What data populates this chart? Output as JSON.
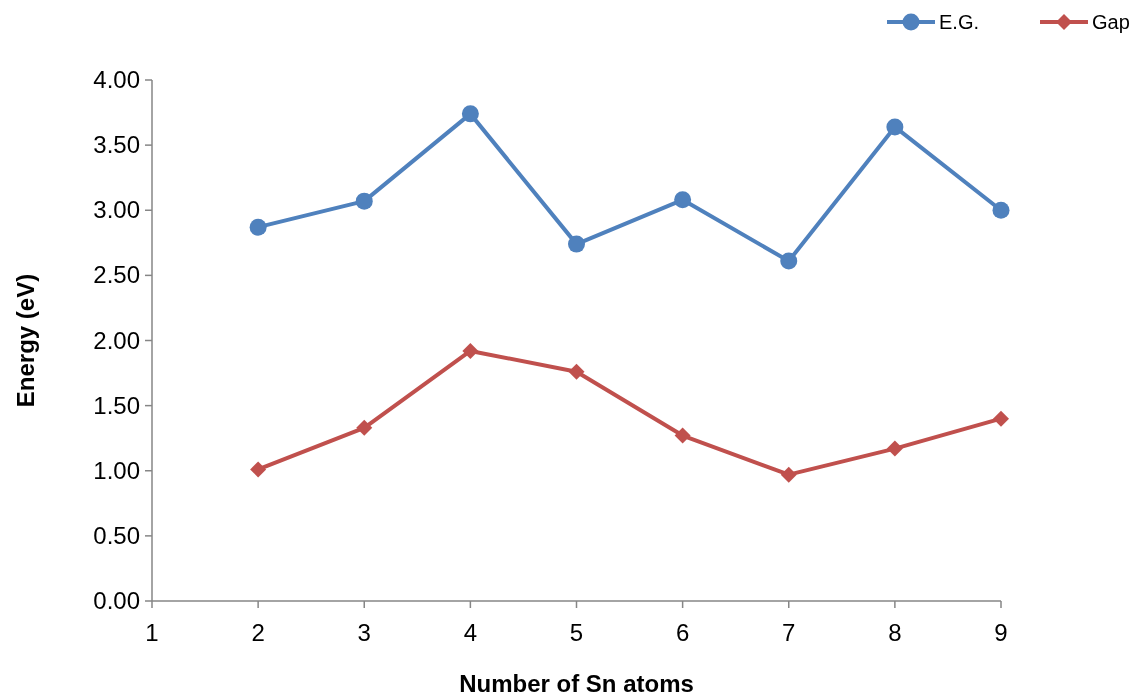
{
  "chart_data": {
    "type": "line",
    "xlabel": "Number of Sn atoms",
    "ylabel": "Energy (eV)",
    "x": [
      2,
      3,
      4,
      5,
      6,
      7,
      8,
      9
    ],
    "xlim": [
      1,
      9
    ],
    "xticks": [
      1,
      2,
      3,
      4,
      5,
      6,
      7,
      8,
      9
    ],
    "ylim": [
      0,
      4
    ],
    "yticks": [
      {
        "value": 0,
        "label": "0.00"
      },
      {
        "value": 0.5,
        "label": "0.50"
      },
      {
        "value": 1,
        "label": "1.00"
      },
      {
        "value": 1.5,
        "label": "1.50"
      },
      {
        "value": 2,
        "label": "2.00"
      },
      {
        "value": 2.5,
        "label": "2.50"
      },
      {
        "value": 3,
        "label": "3.00"
      },
      {
        "value": 3.5,
        "label": "3.50"
      },
      {
        "value": 4,
        "label": "4.00"
      }
    ],
    "grid": false,
    "legend": "top right",
    "line_style": "solid",
    "series": [
      {
        "name": "E.G.",
        "color": "#4f81bd",
        "marker": "circle",
        "values": [
          2.87,
          3.07,
          3.74,
          2.74,
          3.08,
          2.61,
          3.64,
          3.0
        ]
      },
      {
        "name": "Gap",
        "color": "#c0504d",
        "marker": "diamond",
        "values": [
          1.01,
          1.33,
          1.92,
          1.76,
          1.27,
          0.97,
          1.17,
          1.4
        ]
      }
    ]
  }
}
